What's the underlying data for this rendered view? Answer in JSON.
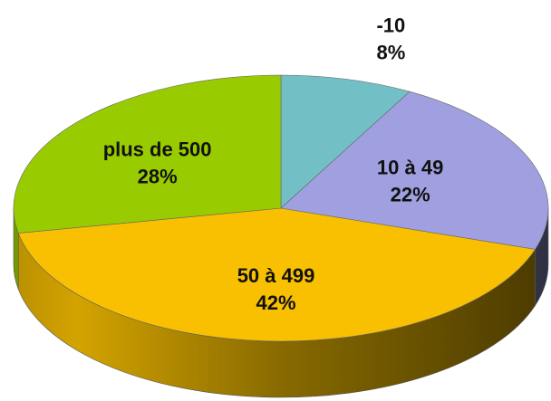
{
  "chart_data": {
    "type": "pie",
    "categories": [
      "-10",
      "10 à 49",
      "50 à 499",
      "plus de 500"
    ],
    "values": [
      8,
      22,
      42,
      28
    ],
    "value_labels": [
      "8%",
      "22%",
      "42%",
      "28%"
    ],
    "colors": [
      "#72bfc6",
      "#a0a0e0",
      "#f8c000",
      "#99cc00"
    ]
  }
}
